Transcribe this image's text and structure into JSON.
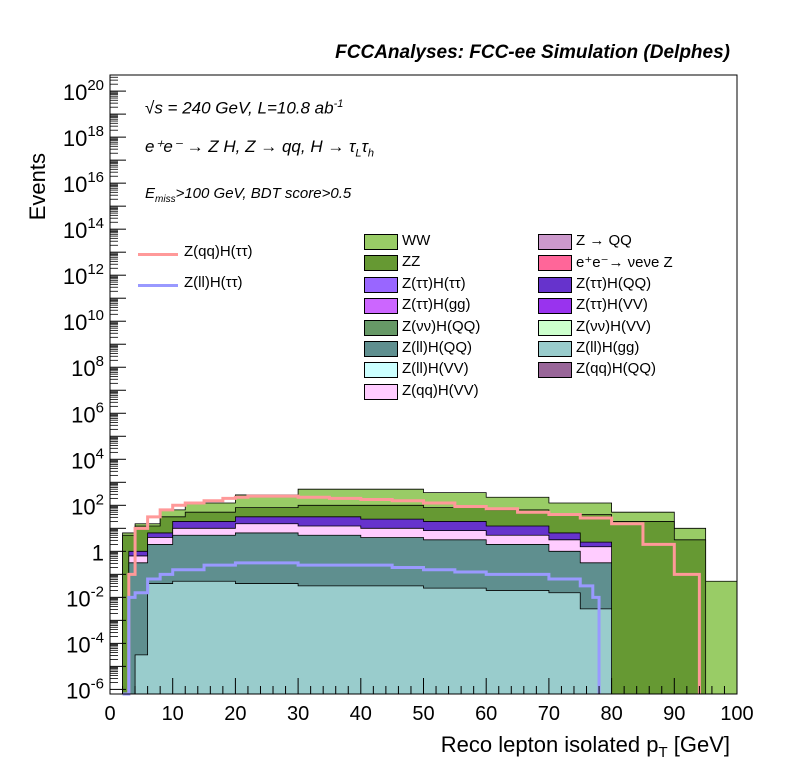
{
  "header": "FCCAnalyses: FCC-ee Simulation (Delphes)",
  "annotations": {
    "energy": "√s = 240 GeV, L=10.8 ab",
    "energy_sup": "-1",
    "process": "e⁺e⁻ → Z H, Z  → qq, H  → τ",
    "process_sub1": "L",
    "process_tau": "τ",
    "process_sub2": "h",
    "selection": "E",
    "selection_sub": "miss",
    "selection_rest": ">100 GeV, BDT score>0.5"
  },
  "chart_data": {
    "type": "area",
    "title": "FCCAnalyses: FCC-ee Simulation (Delphes)",
    "xlabel": "Reco lepton isolated p",
    "xlabel_sub": "T",
    "xlabel_unit": " [GeV]",
    "ylabel": "Events",
    "xlim": [
      0,
      100
    ],
    "ylim_log10": [
      -6.2,
      20.7
    ],
    "yscale": "log",
    "x_ticks": [
      "0",
      "10",
      "20",
      "30",
      "40",
      "50",
      "60",
      "70",
      "80",
      "90",
      "100"
    ],
    "y_ticks": [
      {
        "exp": 20,
        "text": "10",
        "sup": "20"
      },
      {
        "exp": 18,
        "text": "10",
        "sup": "18"
      },
      {
        "exp": 16,
        "text": "10",
        "sup": "16"
      },
      {
        "exp": 14,
        "text": "10",
        "sup": "14"
      },
      {
        "exp": 12,
        "text": "10",
        "sup": "12"
      },
      {
        "exp": 10,
        "text": "10",
        "sup": "10"
      },
      {
        "exp": 8,
        "text": "10",
        "sup": "8"
      },
      {
        "exp": 6,
        "text": "10",
        "sup": "6"
      },
      {
        "exp": 4,
        "text": "10",
        "sup": "4"
      },
      {
        "exp": 2,
        "text": "10",
        "sup": "2"
      },
      {
        "exp": 0,
        "text": "1",
        "sup": ""
      },
      {
        "exp": -2,
        "text": "10",
        "sup": "-2"
      },
      {
        "exp": -4,
        "text": "10",
        "sup": "-4"
      },
      {
        "exp": -6,
        "text": "10",
        "sup": "-6"
      }
    ],
    "stack_colors": {
      "WW": "#99cc66",
      "ZZ": "#669933",
      "Ztt_QQ": "#6633cc",
      "Ztt_VV": "#9933ee",
      "Ztt_tt": "#9966ff",
      "Zqq_VV": "#ffccff",
      "Zll_QQ": "#5f8f8f",
      "Zvv_QQ": "#669966",
      "Zll_gg": "#99cccc",
      "Zll_VV": "#ccffff",
      "Ztt_gg": "#cc66ff",
      "Z_QQ": "#cc99cc",
      "nunuZ": "#ff6699",
      "Zqq_QQ": "#996699"
    },
    "envelope_total": {
      "x": [
        2,
        3,
        4,
        5,
        6,
        8,
        10,
        12,
        15,
        20,
        25,
        30,
        35,
        40,
        45,
        50,
        55,
        60,
        65,
        70,
        75,
        80,
        85,
        90,
        95,
        100
      ],
      "log10_y": [
        -6.2,
        0.8,
        1.1,
        1.3,
        1.5,
        1.8,
        1.9,
        2.1,
        2.25,
        2.45,
        2.6,
        2.7,
        2.72,
        2.7,
        2.65,
        2.55,
        2.45,
        2.35,
        2.25,
        2.1,
        1.85,
        1.7,
        1.55,
        1.0,
        -1.3,
        -1.3
      ]
    },
    "series": [
      {
        "name": "WW",
        "color": "#99cc66",
        "x": [
          2,
          4,
          8,
          12,
          20,
          30,
          40,
          50,
          60,
          70,
          80,
          90,
          95,
          100
        ],
        "log10_y": [
          0.8,
          1.2,
          1.8,
          2.1,
          2.45,
          2.7,
          2.7,
          2.55,
          2.35,
          2.1,
          1.7,
          1.0,
          -1.3,
          -1.3
        ]
      },
      {
        "name": "ZZ",
        "color": "#669933",
        "x": [
          2,
          4,
          8,
          12,
          20,
          30,
          40,
          50,
          60,
          70,
          80,
          90,
          95
        ],
        "log10_y": [
          0.7,
          1.1,
          1.5,
          1.7,
          1.9,
          2.0,
          2.0,
          1.9,
          1.8,
          1.6,
          1.3,
          0.5,
          -6.2
        ]
      },
      {
        "name": "Z(ττ)H(QQ)",
        "color": "#6633cc",
        "x": [
          3,
          6,
          10,
          20,
          30,
          40,
          50,
          60,
          70,
          75,
          80
        ],
        "log10_y": [
          0.0,
          0.8,
          1.3,
          1.5,
          1.5,
          1.4,
          1.3,
          1.1,
          0.8,
          0.4,
          -0.5
        ]
      },
      {
        "name": "Z(qq)H(VV)",
        "color": "#ffccff",
        "x": [
          3,
          6,
          10,
          20,
          30,
          40,
          50,
          60,
          70,
          75,
          80
        ],
        "log10_y": [
          -0.2,
          0.6,
          1.0,
          1.2,
          1.1,
          1.0,
          0.9,
          0.7,
          0.5,
          0.2,
          -1.0
        ]
      },
      {
        "name": "Z(ll)H(QQ)",
        "color": "#5f8f8f",
        "x": [
          3,
          6,
          10,
          20,
          30,
          40,
          50,
          60,
          70,
          75,
          80
        ],
        "log10_y": [
          -0.5,
          0.3,
          0.7,
          0.8,
          0.7,
          0.6,
          0.5,
          0.3,
          0.0,
          -0.5,
          -1.5
        ]
      },
      {
        "name": "Z(ll)H(gg)",
        "color": "#99cccc",
        "x": [
          4,
          6,
          10,
          20,
          30,
          40,
          50,
          60,
          70,
          75,
          80
        ],
        "log10_y": [
          -4.5,
          -1.4,
          -1.3,
          -1.4,
          -1.5,
          -1.5,
          -1.6,
          -1.7,
          -1.8,
          -2.5,
          -6.2
        ]
      }
    ],
    "lines": [
      {
        "name": "Z(qq)H(ττ)",
        "color": "#ff9999",
        "x": [
          2,
          3,
          4,
          6,
          8,
          10,
          12,
          15,
          18,
          20,
          22,
          25,
          30,
          35,
          40,
          45,
          50,
          55,
          60,
          65,
          70,
          75,
          80,
          85,
          90,
          94
        ],
        "log10_y": [
          -6.2,
          -1.0,
          1.0,
          1.5,
          1.8,
          2.0,
          2.1,
          2.2,
          2.3,
          2.35,
          2.4,
          2.4,
          2.35,
          2.3,
          2.25,
          2.2,
          2.1,
          1.95,
          1.85,
          1.7,
          1.6,
          1.45,
          1.2,
          0.3,
          -1.0,
          -6.2
        ]
      },
      {
        "name": "Z(ll)H(ττ)",
        "color": "#9999ff",
        "x": [
          2,
          3,
          4,
          6,
          8,
          10,
          15,
          20,
          25,
          30,
          35,
          40,
          45,
          50,
          55,
          60,
          65,
          70,
          75,
          77,
          78
        ],
        "log10_y": [
          -6.2,
          -2.0,
          -1.8,
          -1.2,
          -1.0,
          -0.8,
          -0.6,
          -0.5,
          -0.5,
          -0.6,
          -0.6,
          -0.6,
          -0.7,
          -0.8,
          -0.9,
          -1.0,
          -1.0,
          -1.2,
          -1.5,
          -2.0,
          -6.2
        ]
      }
    ],
    "legend": {
      "lines": [
        {
          "label": "Z(qq)H(ττ)",
          "color": "#ff9999"
        },
        {
          "label": "Z(ll)H(ττ)",
          "color": "#9999ff"
        }
      ],
      "col1": [
        {
          "label": "WW",
          "color": "#99cc66"
        },
        {
          "label": "ZZ",
          "color": "#669933"
        },
        {
          "label": "Z(ττ)H(ττ)",
          "color": "#9966ff"
        },
        {
          "label": "Z(ττ)H(gg)",
          "color": "#cc66ff"
        },
        {
          "label": "Z(νν)H(QQ)",
          "color": "#669966"
        },
        {
          "label": "Z(ll)H(QQ)",
          "color": "#5f8f8f"
        },
        {
          "label": "Z(ll)H(VV)",
          "color": "#ccffff"
        },
        {
          "label": "Z(qq)H(VV)",
          "color": "#ffccff"
        }
      ],
      "col2": [
        {
          "label": "Z → QQ",
          "color": "#cc99cc"
        },
        {
          "label": "e⁺e⁻→ νeνe Z",
          "color": "#ff6699"
        },
        {
          "label": "Z(ττ)H(QQ)",
          "color": "#6633cc"
        },
        {
          "label": "Z(ττ)H(VV)",
          "color": "#9933ee"
        },
        {
          "label": "Z(νν)H(VV)",
          "color": "#ccffcc"
        },
        {
          "label": "Z(ll)H(gg)",
          "color": "#99cccc"
        },
        {
          "label": "Z(qq)H(QQ)",
          "color": "#996699"
        }
      ]
    }
  }
}
